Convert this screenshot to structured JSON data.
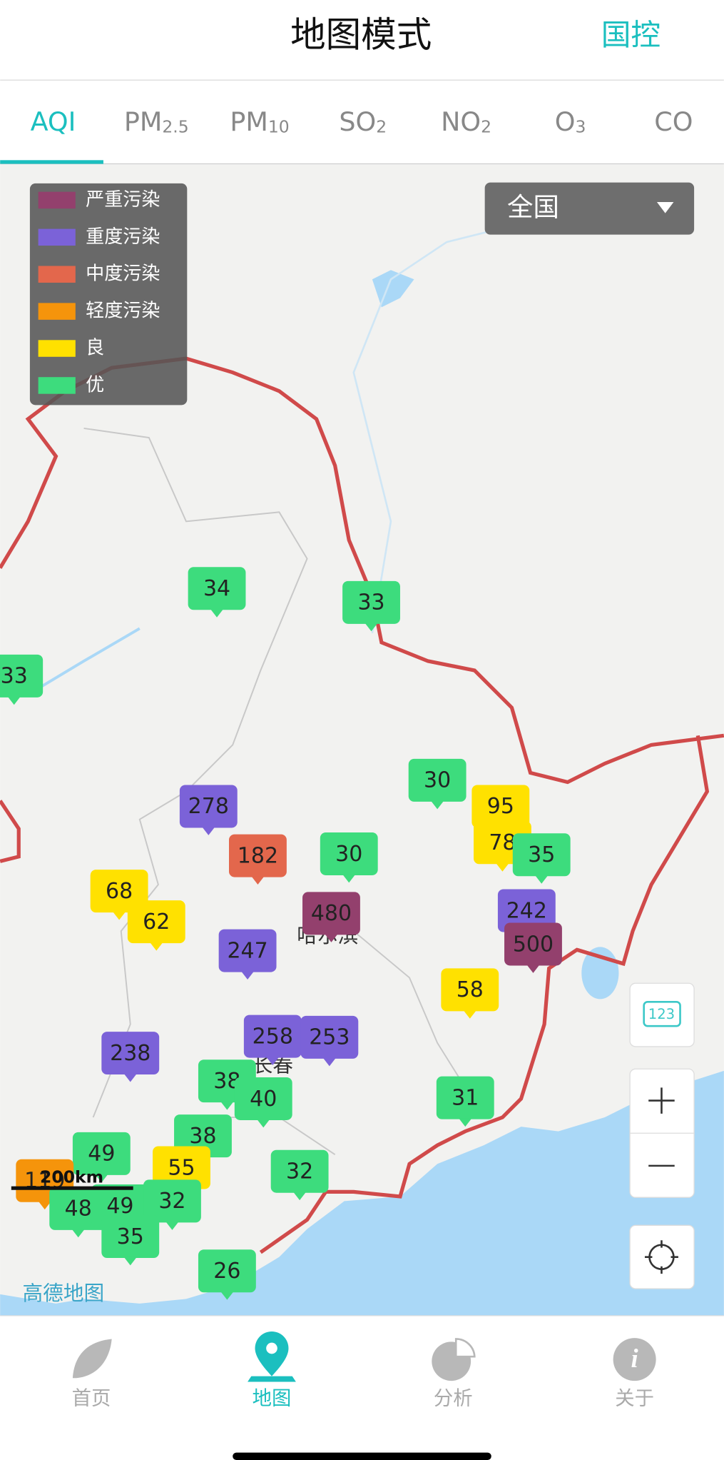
{
  "header": {
    "title": "地图模式",
    "right_action": "国控"
  },
  "tabs": [
    {
      "main": "AQI"
    },
    {
      "main": "PM",
      "sub": "2.5"
    },
    {
      "main": "PM",
      "sub": "10"
    },
    {
      "main": "SO",
      "sub": "2"
    },
    {
      "main": "NO",
      "sub": "2"
    },
    {
      "main": "O",
      "sub": "3"
    },
    {
      "main": "CO"
    }
  ],
  "legend": [
    {
      "label": "严重污染",
      "color": "#93406d"
    },
    {
      "label": "重度污染",
      "color": "#7b62d8"
    },
    {
      "label": "中度污染",
      "color": "#e3674c"
    },
    {
      "label": "轻度污染",
      "color": "#f5940b"
    },
    {
      "label": "良",
      "color": "#ffe100"
    },
    {
      "label": "优",
      "color": "#3ddc7d"
    }
  ],
  "region_select": "全国",
  "map_labels": {
    "city_1": "哈尔滨",
    "city_2": "长春",
    "scale": "200km",
    "logo": "高德地图",
    "layer_button": "123"
  },
  "markers": [
    {
      "value": 34,
      "color": "#3ddc7d"
    },
    {
      "value": 33,
      "color": "#3ddc7d"
    },
    {
      "value": 33,
      "color": "#3ddc7d"
    },
    {
      "value": 30,
      "color": "#3ddc7d"
    },
    {
      "value": 95,
      "color": "#ffe100"
    },
    {
      "value": 278,
      "color": "#7b62d8"
    },
    {
      "value": 182,
      "color": "#e3674c"
    },
    {
      "value": 30,
      "color": "#3ddc7d"
    },
    {
      "value": 78,
      "color": "#ffe100"
    },
    {
      "value": 35,
      "color": "#3ddc7d"
    },
    {
      "value": 68,
      "color": "#ffe100"
    },
    {
      "value": 62,
      "color": "#ffe100"
    },
    {
      "value": 480,
      "color": "#93406d"
    },
    {
      "value": 242,
      "color": "#7b62d8"
    },
    {
      "value": 500,
      "color": "#93406d"
    },
    {
      "value": 247,
      "color": "#7b62d8"
    },
    {
      "value": 58,
      "color": "#ffe100"
    },
    {
      "value": 258,
      "color": "#7b62d8"
    },
    {
      "value": 253,
      "color": "#7b62d8"
    },
    {
      "value": 238,
      "color": "#7b62d8"
    },
    {
      "value": 38,
      "color": "#3ddc7d"
    },
    {
      "value": 40,
      "color": "#3ddc7d"
    },
    {
      "value": 31,
      "color": "#3ddc7d"
    },
    {
      "value": 38,
      "color": "#3ddc7d"
    },
    {
      "value": 49,
      "color": "#3ddc7d"
    },
    {
      "value": 119,
      "color": "#f5940b"
    },
    {
      "value": 55,
      "color": "#ffe100"
    },
    {
      "value": 32,
      "color": "#3ddc7d"
    },
    {
      "value": 48,
      "color": "#3ddc7d"
    },
    {
      "value": 49,
      "color": "#3ddc7d"
    },
    {
      "value": 32,
      "color": "#3ddc7d"
    },
    {
      "value": 35,
      "color": "#3ddc7d"
    },
    {
      "value": 26,
      "color": "#3ddc7d"
    }
  ],
  "nav": [
    "首页",
    "地图",
    "分析",
    "关于"
  ]
}
